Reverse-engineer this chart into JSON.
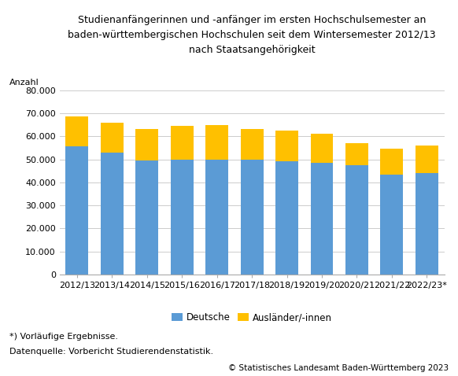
{
  "categories": [
    "2012/13",
    "2013/14",
    "2014/15",
    "2015/16",
    "2016/17",
    "2017/18",
    "2018/19",
    "2019/20",
    "2020/21",
    "2021/22",
    "2022/23*"
  ],
  "deutsche": [
    55500,
    53000,
    49500,
    50000,
    50000,
    50000,
    49000,
    48500,
    47500,
    43500,
    44000
  ],
  "auslaender": [
    13000,
    13000,
    13500,
    14500,
    15000,
    13000,
    13500,
    12500,
    9500,
    11000,
    12000
  ],
  "bar_color_deutsche": "#5b9bd5",
  "bar_color_auslaender": "#ffc000",
  "title_line1": "Studienanfängerinnen und -anfänger im ersten Hochschulsemester an",
  "title_line2": "baden-württembergischen Hochschulen seit dem Wintersemester 2012/13",
  "title_line3": "nach Staatsangehörigkeit",
  "ylabel_label": "Anzahl",
  "ylim": [
    0,
    80000
  ],
  "yticks": [
    0,
    10000,
    20000,
    30000,
    40000,
    50000,
    60000,
    70000,
    80000
  ],
  "legend_deutsche": "Deutsche",
  "legend_auslaender": "Ausländer/-innen",
  "footnote1": "*) Vorläufige Ergebnisse.",
  "footnote2": "Datenquelle: Vorbericht Studierendenstatistik.",
  "copyright": "© Statistisches Landesamt Baden-Württemberg 2023",
  "background_color": "#ffffff",
  "grid_color": "#cccccc",
  "title_fontsize": 9,
  "tick_fontsize": 8,
  "legend_fontsize": 8.5,
  "footnote_fontsize": 8,
  "copyright_fontsize": 7.5
}
